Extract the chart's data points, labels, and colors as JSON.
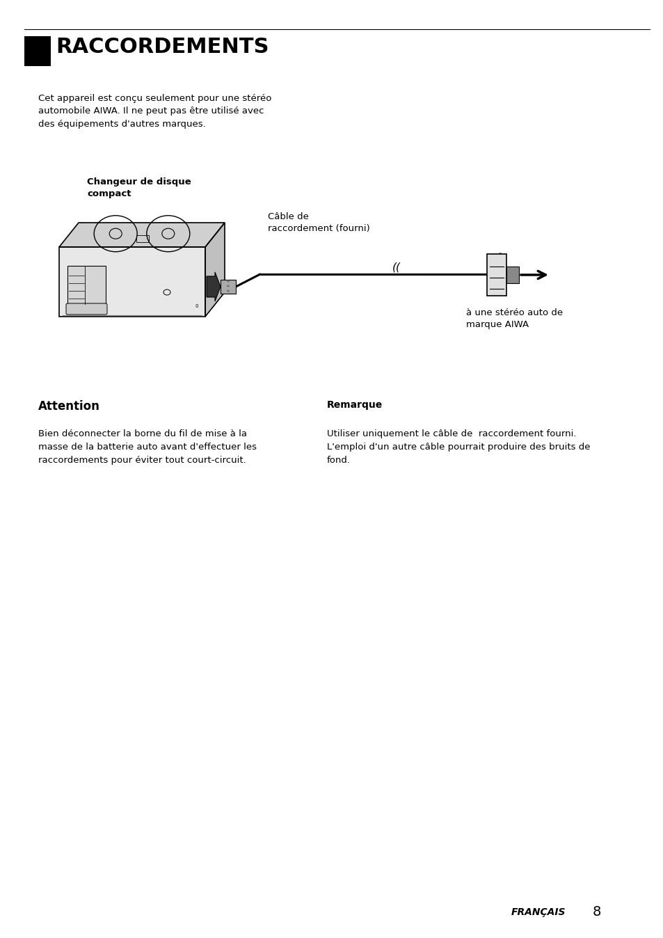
{
  "background_color": "#ffffff",
  "page_width": 9.54,
  "page_height": 13.48,
  "header_title": "RACCORDEMENTS",
  "intro_text": "Cet appareil est conçu seulement pour une stéréo\nautomobile AIWA. Il ne peut pas être utilisé avec\ndes équipements d'autres marques.",
  "label_changeur": "Changeur de disque\ncompact",
  "label_cable": "Câble de\nraccordement (fourni)",
  "label_stereo": "à une stéréo auto de\nmarque AIWA",
  "attention_title": "Attention",
  "attention_body": "Bien déconnecter la borne du fil de mise à la\nmasse de la batterie auto avant d'effectuer les\nraccordements pour éviter tout court-circuit.",
  "remarque_title": "Remarque",
  "remarque_body": "Utiliser uniquement le câble de  raccordement fourni.\nL'emploi d'un autre câble pourrait produire des bruits de\nfond.",
  "footer_text": "FRANÇAIS",
  "footer_number": "8",
  "text_color": "#000000"
}
